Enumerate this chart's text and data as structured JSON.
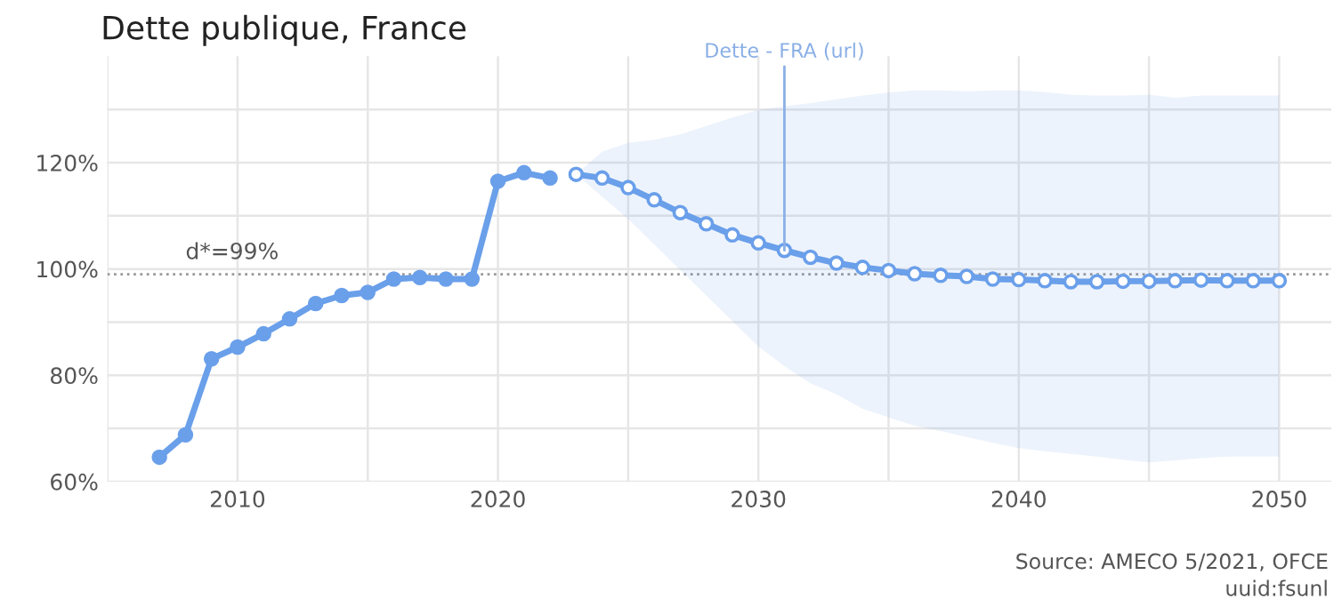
{
  "chart_data": {
    "type": "line",
    "title": "Dette publique, France",
    "xlim": [
      2005,
      2052
    ],
    "xticks": [
      {
        "value": 2005,
        "label": null
      },
      2010,
      {
        "value": 2015,
        "label": null
      },
      2020,
      {
        "value": 2025,
        "label": null
      },
      2030,
      {
        "value": 2035,
        "label": null
      },
      2040,
      {
        "value": 2045,
        "label": null
      },
      2050
    ],
    "ylim": [
      60,
      140
    ],
    "yticks": [
      {
        "value": 60,
        "label": "60%"
      },
      {
        "value": 70,
        "label": null
      },
      {
        "value": 80,
        "label": "80%"
      },
      {
        "value": 90,
        "label": null
      },
      {
        "value": 100,
        "label": "100%"
      },
      {
        "value": 110,
        "label": null
      },
      {
        "value": 120,
        "label": "120%"
      },
      {
        "value": 130,
        "label": null
      }
    ],
    "grid": true,
    "marker": "circle",
    "line_style": "solid",
    "series": [
      {
        "color": "#6a9fea",
        "x": [
          2023,
          2024,
          2025,
          2026,
          2027,
          2028,
          2029,
          2030,
          2031,
          2032,
          2033,
          2034,
          2035,
          2036,
          2037,
          2038,
          2039,
          2040,
          2041,
          2042,
          2043,
          2044,
          2045,
          2046,
          2047,
          2048,
          2049,
          2050
        ],
        "values": [
          117.8,
          117.1,
          115.3,
          113.0,
          110.6,
          108.5,
          106.4,
          104.9,
          103.5,
          102.2,
          101.1,
          100.3,
          99.7,
          99.1,
          98.8,
          98.6,
          98.1,
          98.0,
          97.8,
          97.6,
          97.6,
          97.7,
          97.7,
          97.8,
          97.9,
          97.8,
          97.8,
          97.8
        ],
        "lower": [
          117.8,
          113.6,
          109.4,
          104.6,
          99.8,
          95.0,
          90.2,
          85.4,
          81.7,
          78.5,
          76.4,
          73.7,
          72.1,
          70.5,
          69.5,
          68.4,
          67.3,
          66.3,
          65.7,
          65.2,
          64.7,
          64.1,
          63.6,
          64.0,
          64.4,
          64.7,
          64.7,
          64.7
        ],
        "upper": [
          117.8,
          122.1,
          123.7,
          124.3,
          125.3,
          126.9,
          128.5,
          129.9,
          130.6,
          131.2,
          131.9,
          132.6,
          133.2,
          133.6,
          133.6,
          133.4,
          133.6,
          133.6,
          133.3,
          132.8,
          132.6,
          132.6,
          132.8,
          132.2,
          132.6,
          132.6,
          132.6,
          132.6
        ]
      },
      {
        "color": "#6a9fea",
        "x": [
          2007,
          2008,
          2009,
          2010,
          2011,
          2012,
          2013,
          2014,
          2015,
          2016,
          2017,
          2018,
          2019,
          2020,
          2021,
          2022
        ],
        "values": [
          64.6,
          68.8,
          83.1,
          85.3,
          87.8,
          90.6,
          93.5,
          95.0,
          95.6,
          98.1,
          98.4,
          98.1,
          98.1,
          116.5,
          118.1,
          117.1
        ]
      }
    ],
    "ref_lines": [
      {
        "axis": "y",
        "value": 99,
        "label": "d*=99%",
        "color": "#999999",
        "line_style": "dotted"
      }
    ],
    "annotations": [
      {
        "text": "Dette - FRA (url)",
        "x": 2031,
        "y": 103.5
      },
      "Source: AMECO 5/2021, OFCE",
      "uuid:fsunl"
    ]
  }
}
